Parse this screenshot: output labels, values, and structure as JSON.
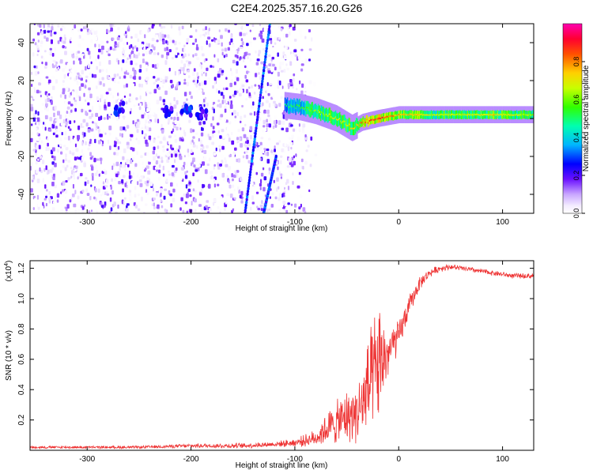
{
  "title": "C2E4.2025.357.16.20.G26",
  "chart_data": [
    {
      "type": "heatmap",
      "xlabel": "Height of straight line (km)",
      "ylabel": "Frequency (Hz)",
      "xlim": [
        -355,
        130
      ],
      "ylim": [
        -50,
        50
      ],
      "x_ticks": [
        -300,
        -200,
        -100,
        0,
        100
      ],
      "y_ticks": [
        -40,
        -20,
        0,
        20,
        40
      ],
      "colorbar": {
        "label": "Normalized spectral amplitude",
        "range": [
          0,
          1
        ],
        "ticks": [
          "0.0",
          "0.2",
          "0.4",
          "0.6",
          "0.8"
        ],
        "colors": [
          "#ffffff",
          "#d9c6f7",
          "#9a5cf0",
          "#5b00ff",
          "#0000ff",
          "#00c8ff",
          "#00ff7f",
          "#7fff00",
          "#ffff00",
          "#ff8000",
          "#ff0000",
          "#ff00a0"
        ]
      },
      "band": {
        "x": [
          -110,
          -95,
          -80,
          -60,
          -45,
          -35,
          -20,
          0,
          30,
          60,
          90,
          130
        ],
        "freq": [
          7,
          6,
          4,
          0,
          -5,
          -2,
          0,
          2,
          2,
          2,
          2,
          2
        ],
        "peak_amplitude": [
          0.55,
          0.6,
          0.7,
          0.75,
          0.8,
          0.9,
          0.95,
          0.85,
          0.75,
          0.75,
          0.8,
          0.7
        ]
      },
      "streaks": [
        {
          "x": [
            -148,
            -124
          ],
          "freq": [
            -50,
            50
          ]
        },
        {
          "x": [
            -130,
            -118
          ],
          "freq": [
            -50,
            -20
          ]
        }
      ],
      "clusters": [
        {
          "x": -268,
          "freq": 5,
          "amplitude": 0.35
        },
        {
          "x": -222,
          "freq": 3,
          "amplitude": 0.3
        },
        {
          "x": -205,
          "freq": 4,
          "amplitude": 0.35
        },
        {
          "x": -190,
          "freq": 2,
          "amplitude": 0.3
        }
      ],
      "noise_region": {
        "x": [
          -355,
          -95
        ],
        "amplitude_max": 0.15
      }
    },
    {
      "type": "line",
      "xlabel": "Height of straight line (km)",
      "ylabel": "SNR (10 * v/v)",
      "scale_label": "(x10",
      "scale_exp": "4",
      "xlim": [
        -355,
        130
      ],
      "ylim": [
        0,
        1.25
      ],
      "x_ticks": [
        -300,
        -200,
        -100,
        0,
        100
      ],
      "y_ticks": [
        "0.2",
        "0.4",
        "0.6",
        "0.8",
        "1.0",
        "1.2"
      ],
      "series": [
        {
          "color": "#ee3333",
          "x": [
            -355,
            -300,
            -250,
            -200,
            -150,
            -120,
            -100,
            -80,
            -70,
            -60,
            -50,
            -40,
            -35,
            -30,
            -25,
            -20,
            -15,
            -10,
            -5,
            0,
            5,
            10,
            20,
            30,
            40,
            50,
            60,
            70,
            80,
            90,
            100,
            110,
            120,
            130
          ],
          "y": [
            0.02,
            0.02,
            0.02,
            0.03,
            0.03,
            0.04,
            0.05,
            0.08,
            0.14,
            0.18,
            0.22,
            0.25,
            0.3,
            0.4,
            0.45,
            0.55,
            0.6,
            0.64,
            0.7,
            0.75,
            0.85,
            0.95,
            1.1,
            1.17,
            1.2,
            1.21,
            1.2,
            1.19,
            1.18,
            1.17,
            1.16,
            1.15,
            1.15,
            1.15
          ],
          "noise_amplitude": [
            0.01,
            0.01,
            0.01,
            0.015,
            0.02,
            0.02,
            0.03,
            0.06,
            0.12,
            0.16,
            0.2,
            0.22,
            0.3,
            0.38,
            0.42,
            0.5,
            0.3,
            0.2,
            0.15,
            0.12,
            0.1,
            0.08,
            0.05,
            0.03,
            0.025,
            0.02,
            0.02,
            0.02,
            0.02,
            0.02,
            0.02,
            0.02,
            0.02,
            0.02
          ]
        }
      ]
    }
  ]
}
